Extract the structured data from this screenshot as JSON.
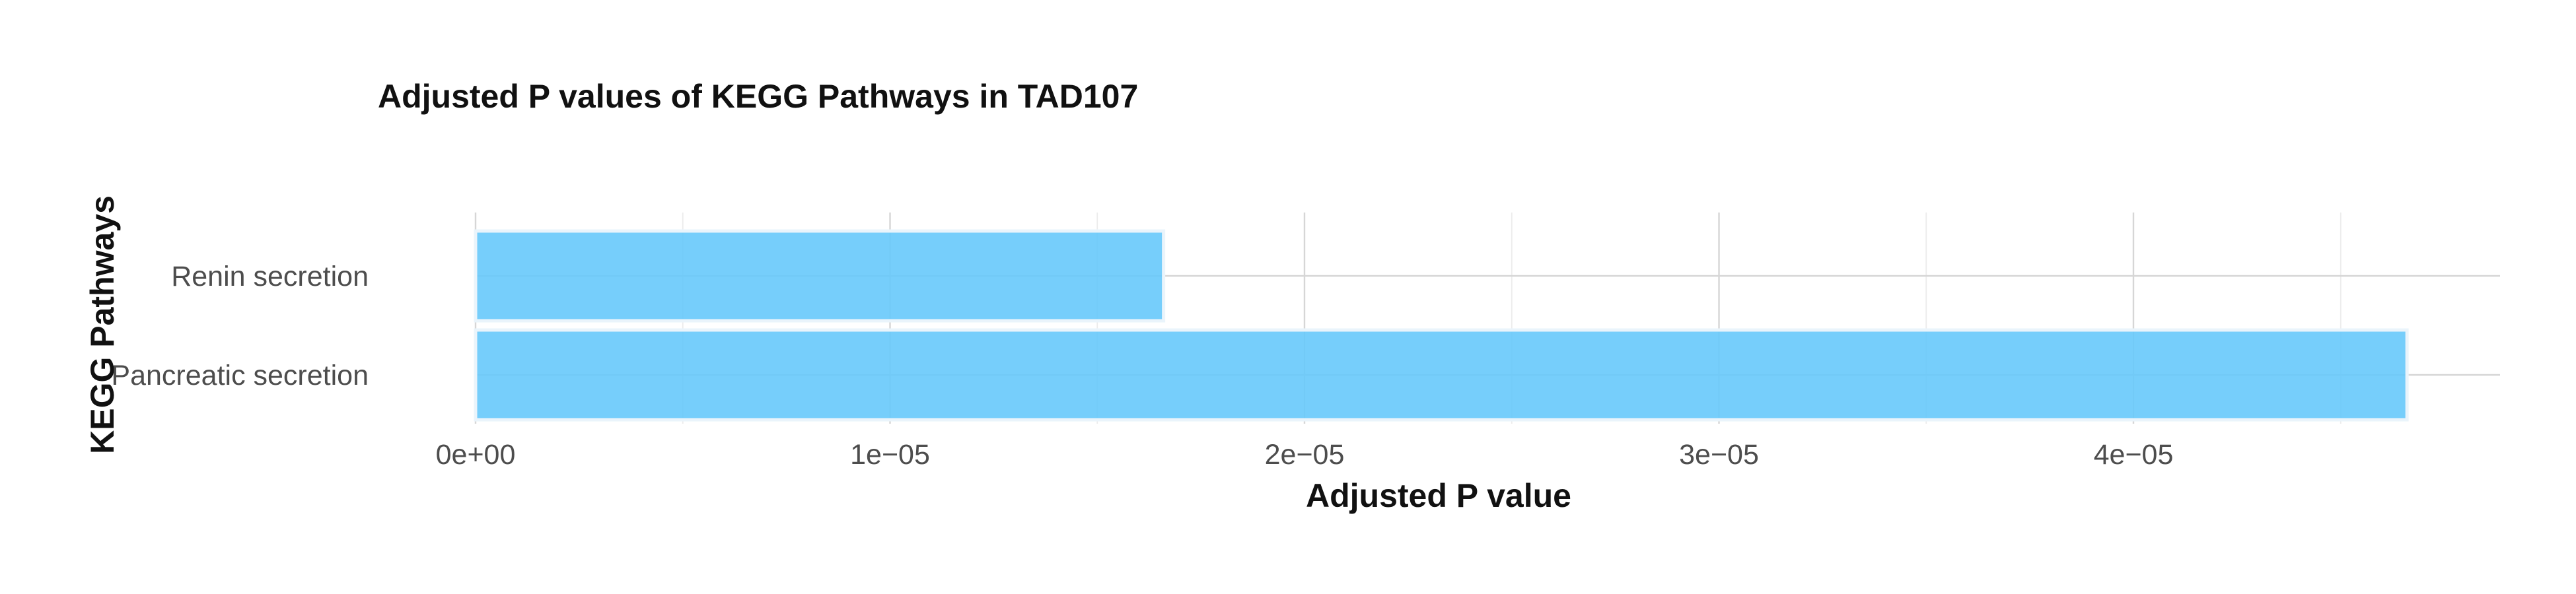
{
  "chart_data": {
    "type": "bar",
    "orientation": "horizontal",
    "title": "Adjusted P values of KEGG Pathways in TAD107",
    "xlabel": "Adjusted P value",
    "ylabel": "KEGG Pathways",
    "categories": [
      "Renin secretion",
      "Pancreatic secretion"
    ],
    "values": [
      1.66e-05,
      4.66e-05
    ],
    "xlim": [
      0,
      4.89e-05
    ],
    "x_ticks": [
      0,
      1e-05,
      2e-05,
      3e-05,
      4e-05
    ],
    "x_tick_labels": [
      "0e+00",
      "1e−05",
      "2e−05",
      "3e−05",
      "4e−05"
    ],
    "grid": true,
    "legend": "none",
    "bar_color": "#67c9fb"
  }
}
